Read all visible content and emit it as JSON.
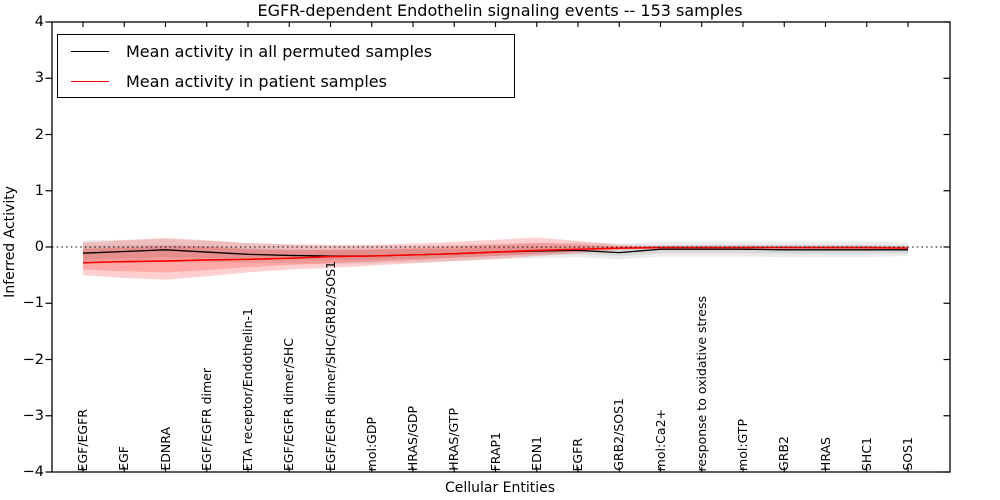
{
  "title": "EGFR-dependent Endothelin signaling events -- 153 samples",
  "axes": {
    "xlabel": "Cellular Entities",
    "ylabel": "Inferred Activity",
    "yticks": [
      {
        "label": "4",
        "value": 4
      },
      {
        "label": "3",
        "value": 3
      },
      {
        "label": "2",
        "value": 2
      },
      {
        "label": "1",
        "value": 1
      },
      {
        "label": "0",
        "value": 0
      },
      {
        "label": "−1",
        "value": -1
      },
      {
        "label": "−2",
        "value": -2
      },
      {
        "label": "−3",
        "value": -3
      },
      {
        "label": "−4",
        "value": -4
      }
    ]
  },
  "legend": {
    "items": [
      {
        "label": "Mean activity in all permuted samples",
        "color": "#000000"
      },
      {
        "label": "Mean activity in patient samples",
        "color": "#ff0000"
      }
    ]
  },
  "chart_data": {
    "type": "line",
    "title": "EGFR-dependent Endothelin signaling events -- 153 samples",
    "xlabel": "Cellular Entities",
    "ylabel": "Inferred Activity",
    "ylim": [
      -4,
      4
    ],
    "grid": false,
    "legend_position": "upper left",
    "zero_line": {
      "style": "dotted",
      "color": "#000000",
      "value": 0
    },
    "categories": [
      "EGF/EGFR",
      "EGF",
      "EDNRA",
      "EGF/EGFR dimer",
      "ETA receptor/Endothelin-1",
      "EGF/EGFR dimer/SHC",
      "EGF/EGFR dimer/SHC/GRB2/SOS1",
      "mol:GDP",
      "HRAS/GDP",
      "HRAS/GTP",
      "FRAP1",
      "EDN1",
      "EGFR",
      "GRB2/SOS1",
      "mol:Ca2+",
      "response to oxidative stress",
      "mol:GTP",
      "GRB2",
      "HRAS",
      "SHC1",
      "SOS1"
    ],
    "series": [
      {
        "name": "Mean activity in all permuted samples",
        "color": "#000000",
        "line_width": 1.3,
        "band_fill": "rgba(0,0,0,0.08)",
        "values": [
          -0.11,
          -0.08,
          -0.05,
          -0.09,
          -0.13,
          -0.15,
          -0.16,
          -0.16,
          -0.14,
          -0.12,
          -0.09,
          -0.07,
          -0.06,
          -0.1,
          -0.04,
          -0.04,
          -0.04,
          -0.05,
          -0.05,
          -0.05,
          -0.05
        ],
        "band_outer": {
          "low": [
            -0.3,
            -0.28,
            -0.26,
            -0.27,
            -0.28,
            -0.29,
            -0.3,
            -0.29,
            -0.27,
            -0.25,
            -0.22,
            -0.2,
            -0.18,
            -0.22,
            -0.17,
            -0.17,
            -0.17,
            -0.18,
            -0.18,
            -0.18,
            -0.16
          ],
          "high": [
            0.12,
            0.13,
            0.14,
            0.11,
            0.07,
            0.04,
            0.02,
            0.02,
            0.03,
            0.04,
            0.06,
            0.07,
            0.08,
            0.06,
            0.09,
            0.1,
            0.1,
            0.1,
            0.1,
            0.1,
            0.08
          ]
        },
        "band_inner": {
          "low": [
            -0.22,
            -0.2,
            -0.18,
            -0.19,
            -0.21,
            -0.22,
            -0.23,
            -0.22,
            -0.21,
            -0.19,
            -0.16,
            -0.14,
            -0.13,
            -0.16,
            -0.11,
            -0.11,
            -0.11,
            -0.12,
            -0.12,
            -0.12,
            -0.11
          ],
          "high": [
            0.02,
            0.03,
            0.04,
            0.02,
            -0.02,
            -0.04,
            -0.05,
            -0.05,
            -0.04,
            -0.03,
            -0.01,
            0.0,
            0.01,
            0.0,
            0.03,
            0.04,
            0.04,
            0.04,
            0.04,
            0.04,
            0.03
          ]
        }
      },
      {
        "name": "Mean activity in patient samples",
        "color": "#ff0000",
        "line_width": 1.6,
        "band_fill": "rgba(255,0,0,0.19)",
        "values": [
          -0.28,
          -0.26,
          -0.25,
          -0.23,
          -0.22,
          -0.2,
          -0.17,
          -0.16,
          -0.14,
          -0.12,
          -0.09,
          -0.06,
          -0.04,
          -0.02,
          -0.01,
          -0.01,
          -0.01,
          -0.01,
          -0.01,
          -0.01,
          -0.02
        ],
        "band_outer": {
          "low": [
            -0.5,
            -0.55,
            -0.58,
            -0.52,
            -0.45,
            -0.4,
            -0.37,
            -0.33,
            -0.29,
            -0.25,
            -0.21,
            -0.16,
            -0.11,
            -0.05,
            -0.03,
            -0.03,
            -0.03,
            -0.03,
            -0.04,
            -0.04,
            -0.05
          ],
          "high": [
            0.08,
            0.12,
            0.16,
            0.12,
            0.07,
            0.05,
            0.04,
            0.04,
            0.06,
            0.09,
            0.13,
            0.17,
            0.11,
            0.04,
            0.02,
            0.02,
            0.02,
            0.02,
            0.02,
            0.02,
            0.01
          ]
        },
        "band_inner": {
          "low": [
            -0.4,
            -0.43,
            -0.45,
            -0.41,
            -0.36,
            -0.32,
            -0.29,
            -0.26,
            -0.23,
            -0.19,
            -0.16,
            -0.12,
            -0.08,
            -0.04,
            -0.02,
            -0.02,
            -0.02,
            -0.02,
            -0.03,
            -0.03,
            -0.04
          ],
          "high": [
            -0.03,
            -0.01,
            0.02,
            0.0,
            -0.04,
            -0.06,
            -0.05,
            -0.04,
            -0.02,
            0.01,
            0.04,
            0.07,
            0.05,
            0.01,
            0.01,
            0.01,
            0.01,
            0.01,
            0.01,
            0.01,
            0.0
          ]
        }
      }
    ]
  }
}
